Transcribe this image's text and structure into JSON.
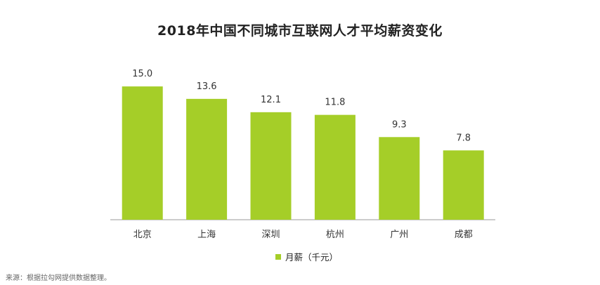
{
  "chart_data": {
    "type": "bar",
    "title": "2018年中国不同城市互联网人才平均薪资变化",
    "categories": [
      "北京",
      "上海",
      "深圳",
      "杭州",
      "广州",
      "成都"
    ],
    "series": [
      {
        "name": "月薪（千元）",
        "values": [
          15.0,
          13.6,
          12.1,
          11.8,
          9.3,
          7.8
        ]
      }
    ],
    "data_labels": [
      "15.0",
      "13.6",
      "12.1",
      "11.8",
      "9.3",
      "7.8"
    ],
    "ylim": [
      0,
      15.8
    ],
    "grid": false,
    "legend_position": "bottom",
    "bar_color": "#a5ce28"
  },
  "source_note": "来源：根据拉勾网提供数据整理。"
}
